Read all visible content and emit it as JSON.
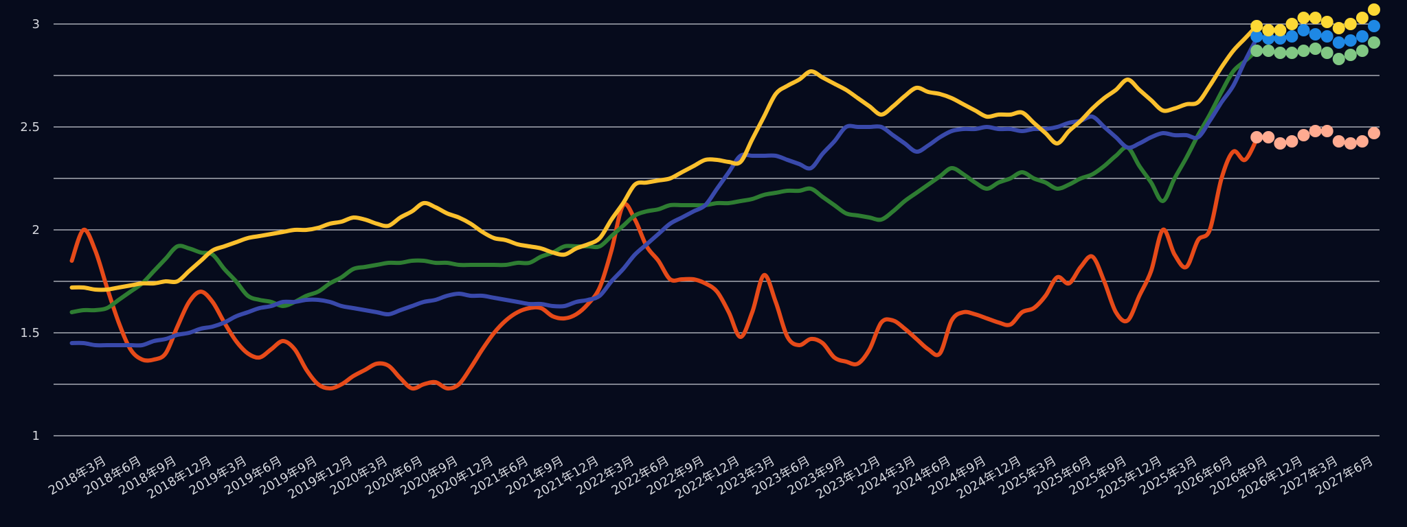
{
  "chart_data": {
    "type": "line",
    "categories": [
      null,
      null,
      null,
      "2018年3月",
      null,
      null,
      "2018年6月",
      null,
      null,
      "2018年9月",
      null,
      null,
      "2018年12月",
      null,
      null,
      "2019年3月",
      null,
      null,
      "2019年6月",
      null,
      null,
      "2019年9月",
      null,
      null,
      "2019年12月",
      null,
      null,
      "2020年3月",
      null,
      null,
      "2020年6月",
      null,
      null,
      "2020年9月",
      null,
      null,
      "2020年12月",
      null,
      null,
      "2021年6月",
      null,
      null,
      "2021年9月",
      null,
      null,
      "2021年12月",
      null,
      null,
      "2022年3月",
      null,
      null,
      "2022年6月",
      null,
      null,
      "2022年9月",
      null,
      null,
      "2022年12月",
      null,
      null,
      "2023年3月",
      null,
      null,
      "2023年6月",
      null,
      null,
      "2023年9月",
      null,
      null,
      "2023年12月",
      null,
      null,
      "2024年3月",
      null,
      null,
      "2024年6月",
      null,
      null,
      "2024年9月",
      null,
      null,
      "2024年12月",
      null,
      null,
      "2025年3月",
      null,
      null,
      "2025年6月",
      null,
      null,
      "2025年9月",
      null,
      null,
      "2025年12月",
      null,
      null,
      "2025年3月",
      null,
      null,
      "2026年6月",
      null,
      null,
      "2026年9月",
      null,
      null,
      "2026年12月",
      null,
      null,
      "2027年3月",
      null,
      null,
      "2027年6月"
    ],
    "ylim": [
      1,
      3
    ],
    "yticks": [
      1,
      1.5,
      2,
      2.5,
      3
    ],
    "grid": true,
    "ygrid_minor": [
      1.25,
      1.75,
      2.25,
      2.75
    ],
    "series": [
      {
        "mode": "line",
        "color": "#e64a19",
        "values": [
          1.85,
          2.0,
          1.9,
          1.72,
          1.55,
          1.42,
          1.37,
          1.37,
          1.4,
          1.53,
          1.65,
          1.7,
          1.65,
          1.55,
          1.46,
          1.4,
          1.38,
          1.42,
          1.46,
          1.42,
          1.32,
          1.25,
          1.23,
          1.25,
          1.29,
          1.32,
          1.35,
          1.34,
          1.28,
          1.23,
          1.25,
          1.26,
          1.23,
          1.25,
          1.33,
          1.42,
          1.5,
          1.56,
          1.6,
          1.62,
          1.62,
          1.58,
          1.57,
          1.59,
          1.64,
          1.72,
          1.9,
          2.12,
          2.05,
          1.92,
          1.85,
          1.76,
          1.76,
          1.76,
          1.74,
          1.7,
          1.6,
          1.48,
          1.6,
          1.78,
          1.65,
          1.48,
          1.44,
          1.47,
          1.45,
          1.38,
          1.36,
          1.35,
          1.42,
          1.55,
          1.56,
          1.52,
          1.47,
          1.42,
          1.4,
          1.56,
          1.6,
          1.59,
          1.57,
          1.55,
          1.54,
          1.6,
          1.62,
          1.68,
          1.77,
          1.74,
          1.82,
          1.87,
          1.75,
          1.6,
          1.56,
          1.68,
          1.8,
          2.0,
          1.88,
          1.82,
          1.95,
          2.0,
          2.25,
          2.38,
          2.34,
          2.44,
          null,
          null,
          null,
          null,
          null,
          null,
          null,
          null,
          null,
          null
        ]
      },
      {
        "mode": "line",
        "color": "#2e7d32",
        "values": [
          1.6,
          1.61,
          1.61,
          1.62,
          1.66,
          1.7,
          1.74,
          1.8,
          1.86,
          1.92,
          1.91,
          1.89,
          1.88,
          1.81,
          1.75,
          1.68,
          1.66,
          1.65,
          1.63,
          1.65,
          1.68,
          1.7,
          1.74,
          1.77,
          1.81,
          1.82,
          1.83,
          1.84,
          1.84,
          1.85,
          1.85,
          1.84,
          1.84,
          1.83,
          1.83,
          1.83,
          1.83,
          1.83,
          1.84,
          1.84,
          1.87,
          1.89,
          1.92,
          1.92,
          1.92,
          1.92,
          1.97,
          2.02,
          2.07,
          2.09,
          2.1,
          2.12,
          2.12,
          2.12,
          2.12,
          2.13,
          2.13,
          2.14,
          2.15,
          2.17,
          2.18,
          2.19,
          2.19,
          2.2,
          2.16,
          2.12,
          2.08,
          2.07,
          2.06,
          2.05,
          2.09,
          2.14,
          2.18,
          2.22,
          2.26,
          2.3,
          2.27,
          2.23,
          2.2,
          2.23,
          2.25,
          2.28,
          2.25,
          2.23,
          2.2,
          2.22,
          2.25,
          2.27,
          2.31,
          2.36,
          2.4,
          2.31,
          2.23,
          2.14,
          2.25,
          2.35,
          2.46,
          2.56,
          2.67,
          2.77,
          2.82,
          2.87,
          null,
          null,
          null,
          null,
          null,
          null,
          null,
          null,
          null,
          null
        ]
      },
      {
        "mode": "line",
        "color": "#3949ab",
        "values": [
          1.45,
          1.45,
          1.44,
          1.44,
          1.44,
          1.44,
          1.44,
          1.46,
          1.47,
          1.49,
          1.5,
          1.52,
          1.53,
          1.55,
          1.58,
          1.6,
          1.62,
          1.63,
          1.65,
          1.65,
          1.66,
          1.66,
          1.65,
          1.63,
          1.62,
          1.61,
          1.6,
          1.59,
          1.61,
          1.63,
          1.65,
          1.66,
          1.68,
          1.69,
          1.68,
          1.68,
          1.67,
          1.66,
          1.65,
          1.64,
          1.64,
          1.63,
          1.63,
          1.65,
          1.66,
          1.68,
          1.75,
          1.81,
          1.88,
          1.93,
          1.98,
          2.03,
          2.06,
          2.09,
          2.12,
          2.2,
          2.28,
          2.36,
          2.36,
          2.36,
          2.36,
          2.34,
          2.32,
          2.3,
          2.37,
          2.43,
          2.5,
          2.5,
          2.5,
          2.5,
          2.46,
          2.42,
          2.38,
          2.41,
          2.45,
          2.48,
          2.49,
          2.49,
          2.5,
          2.49,
          2.49,
          2.48,
          2.49,
          2.49,
          2.5,
          2.52,
          2.53,
          2.55,
          2.5,
          2.45,
          2.4,
          2.42,
          2.45,
          2.47,
          2.46,
          2.46,
          2.45,
          2.53,
          2.62,
          2.7,
          2.82,
          2.93,
          null,
          null,
          null,
          null,
          null,
          null,
          null,
          null,
          null,
          null
        ]
      },
      {
        "mode": "line",
        "color": "#fbc02d",
        "values": [
          1.72,
          1.72,
          1.71,
          1.71,
          1.72,
          1.73,
          1.74,
          1.74,
          1.75,
          1.75,
          1.8,
          1.85,
          1.9,
          1.92,
          1.94,
          1.96,
          1.97,
          1.98,
          1.99,
          2.0,
          2.0,
          2.01,
          2.03,
          2.04,
          2.06,
          2.05,
          2.03,
          2.02,
          2.06,
          2.09,
          2.13,
          2.11,
          2.08,
          2.06,
          2.03,
          1.99,
          1.96,
          1.95,
          1.93,
          1.92,
          1.91,
          1.89,
          1.88,
          1.91,
          1.93,
          1.96,
          2.05,
          2.13,
          2.22,
          2.23,
          2.24,
          2.25,
          2.28,
          2.31,
          2.34,
          2.34,
          2.33,
          2.33,
          2.44,
          2.55,
          2.66,
          2.7,
          2.73,
          2.77,
          2.74,
          2.71,
          2.68,
          2.64,
          2.6,
          2.56,
          2.6,
          2.65,
          2.69,
          2.67,
          2.66,
          2.64,
          2.61,
          2.58,
          2.55,
          2.56,
          2.56,
          2.57,
          2.52,
          2.47,
          2.42,
          2.48,
          2.53,
          2.59,
          2.64,
          2.68,
          2.73,
          2.68,
          2.63,
          2.58,
          2.59,
          2.61,
          2.62,
          2.7,
          2.79,
          2.87,
          2.93,
          2.99,
          null,
          null,
          null,
          null,
          null,
          null,
          null,
          null,
          null,
          null
        ]
      },
      {
        "mode": "markers",
        "color": "#ffab91",
        "values": [
          null,
          null,
          null,
          null,
          null,
          null,
          null,
          null,
          null,
          null,
          null,
          null,
          null,
          null,
          null,
          null,
          null,
          null,
          null,
          null,
          null,
          null,
          null,
          null,
          null,
          null,
          null,
          null,
          null,
          null,
          null,
          null,
          null,
          null,
          null,
          null,
          null,
          null,
          null,
          null,
          null,
          null,
          null,
          null,
          null,
          null,
          null,
          null,
          null,
          null,
          null,
          null,
          null,
          null,
          null,
          null,
          null,
          null,
          null,
          null,
          null,
          null,
          null,
          null,
          null,
          null,
          null,
          null,
          null,
          null,
          null,
          null,
          null,
          null,
          null,
          null,
          null,
          null,
          null,
          null,
          null,
          null,
          null,
          null,
          null,
          null,
          null,
          null,
          null,
          null,
          null,
          null,
          null,
          null,
          null,
          null,
          null,
          null,
          null,
          null,
          null,
          2.45,
          2.45,
          2.42,
          2.43,
          2.46,
          2.48,
          2.48,
          2.43,
          2.42,
          2.43,
          2.47
        ]
      },
      {
        "mode": "markers",
        "color": "#81c784",
        "values": [
          null,
          null,
          null,
          null,
          null,
          null,
          null,
          null,
          null,
          null,
          null,
          null,
          null,
          null,
          null,
          null,
          null,
          null,
          null,
          null,
          null,
          null,
          null,
          null,
          null,
          null,
          null,
          null,
          null,
          null,
          null,
          null,
          null,
          null,
          null,
          null,
          null,
          null,
          null,
          null,
          null,
          null,
          null,
          null,
          null,
          null,
          null,
          null,
          null,
          null,
          null,
          null,
          null,
          null,
          null,
          null,
          null,
          null,
          null,
          null,
          null,
          null,
          null,
          null,
          null,
          null,
          null,
          null,
          null,
          null,
          null,
          null,
          null,
          null,
          null,
          null,
          null,
          null,
          null,
          null,
          null,
          null,
          null,
          null,
          null,
          null,
          null,
          null,
          null,
          null,
          null,
          null,
          null,
          null,
          null,
          null,
          null,
          null,
          null,
          null,
          null,
          2.87,
          2.87,
          2.86,
          2.86,
          2.87,
          2.88,
          2.86,
          2.83,
          2.85,
          2.87,
          2.91
        ]
      },
      {
        "mode": "markers",
        "color": "#1e88e5",
        "values": [
          null,
          null,
          null,
          null,
          null,
          null,
          null,
          null,
          null,
          null,
          null,
          null,
          null,
          null,
          null,
          null,
          null,
          null,
          null,
          null,
          null,
          null,
          null,
          null,
          null,
          null,
          null,
          null,
          null,
          null,
          null,
          null,
          null,
          null,
          null,
          null,
          null,
          null,
          null,
          null,
          null,
          null,
          null,
          null,
          null,
          null,
          null,
          null,
          null,
          null,
          null,
          null,
          null,
          null,
          null,
          null,
          null,
          null,
          null,
          null,
          null,
          null,
          null,
          null,
          null,
          null,
          null,
          null,
          null,
          null,
          null,
          null,
          null,
          null,
          null,
          null,
          null,
          null,
          null,
          null,
          null,
          null,
          null,
          null,
          null,
          null,
          null,
          null,
          null,
          null,
          null,
          null,
          null,
          null,
          null,
          null,
          null,
          null,
          null,
          null,
          null,
          2.94,
          2.93,
          2.93,
          2.94,
          2.97,
          2.95,
          2.94,
          2.91,
          2.92,
          2.94,
          2.99
        ]
      },
      {
        "mode": "markers",
        "color": "#fdd835",
        "values": [
          null,
          null,
          null,
          null,
          null,
          null,
          null,
          null,
          null,
          null,
          null,
          null,
          null,
          null,
          null,
          null,
          null,
          null,
          null,
          null,
          null,
          null,
          null,
          null,
          null,
          null,
          null,
          null,
          null,
          null,
          null,
          null,
          null,
          null,
          null,
          null,
          null,
          null,
          null,
          null,
          null,
          null,
          null,
          null,
          null,
          null,
          null,
          null,
          null,
          null,
          null,
          null,
          null,
          null,
          null,
          null,
          null,
          null,
          null,
          null,
          null,
          null,
          null,
          null,
          null,
          null,
          null,
          null,
          null,
          null,
          null,
          null,
          null,
          null,
          null,
          null,
          null,
          null,
          null,
          null,
          null,
          null,
          null,
          null,
          null,
          null,
          null,
          null,
          null,
          null,
          null,
          null,
          null,
          null,
          null,
          null,
          null,
          null,
          null,
          null,
          null,
          2.99,
          2.97,
          2.97,
          3.0,
          3.03,
          3.03,
          3.01,
          2.98,
          3.0,
          3.03,
          3.07
        ]
      }
    ]
  }
}
